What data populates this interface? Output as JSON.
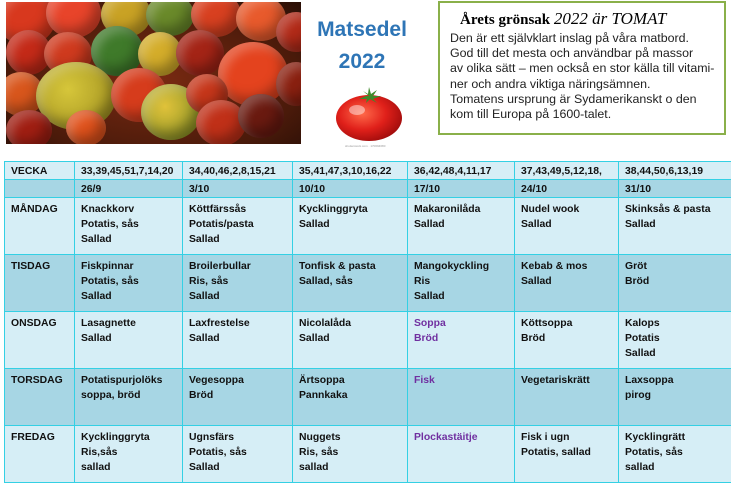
{
  "header": {
    "title_line1": "Matsedel",
    "title_line2": "2022",
    "image_caption": "shutterstock.com · 170694680"
  },
  "infobox": {
    "heading_prefix": "Årets grönsak",
    "heading_emph": "2022 är TOMAT",
    "body": "Den är ett självklart inslag på våra matbord.\nGod till det mesta och användbar på massor\nav olika sätt – men också en stor källa till vitami-\nner och andra viktiga näringsämnen.\nTomatens ursprung är Sydamerikanskt o den\nkom till Europa på 1600-talet."
  },
  "table": {
    "vecka_label": "VECKA",
    "weeks": [
      "33,39,45,51,7,14,20",
      "34,40,46,2,8,15,21",
      "35,41,47,3,10,16,22",
      "36,42,48,4,11,17",
      "37,43,49,5,12,18,",
      "38,44,50,6,13,19"
    ],
    "dates": [
      "26/9",
      "3/10",
      "10/10",
      "17/10",
      "24/10",
      "31/10"
    ],
    "days": [
      {
        "name": "MÅNDAG",
        "meals": [
          "Knackkorv\nPotatis, sås\nSallad",
          "Köttfärssås\nPotatis/pasta\nSallad",
          "Kycklinggryta\nSallad",
          "Makaronilåda\nSallad",
          "Nudel wook\nSallad",
          "Skinksås & pasta\nSallad"
        ]
      },
      {
        "name": "TISDAG",
        "meals": [
          "Fiskpinnar\nPotatis, sås\nSallad",
          "Broilerbullar\nRis, sås\nSallad",
          "Tonfisk & pasta\nSallad, sås",
          "Mangokyckling\nRis\nSallad",
          "Kebab & mos\nSallad",
          "Gröt\nBröd"
        ]
      },
      {
        "name": "ONSDAG",
        "meals": [
          "Lasagnette\nSallad",
          "Laxfrestelse\nSallad",
          "Nicolalåda\nSallad",
          "Soppa\nBröd",
          "Köttsoppa\nBröd",
          "Kalops\nPotatis\nSallad"
        ]
      },
      {
        "name": "TORSDAG",
        "meals": [
          "Potatispurjolöks\nsoppa, bröd",
          "Vegesoppa\nBröd",
          "Ärtsoppa\nPannkaka",
          "Fisk",
          "Vegetariskrätt",
          "Laxsoppa\npirog"
        ]
      },
      {
        "name": "FREDAG",
        "meals": [
          "Kycklinggryta\nRis,sås\nsallad",
          "Ugnsfärs\nPotatis, sås\nSallad",
          "Nuggets\nRis, sås\nsallad",
          "Plockastäitje",
          "Fisk i ugn\nPotatis, sallad",
          "Kycklingrätt\nPotatis, sås\nsallad"
        ]
      }
    ]
  },
  "colors": {
    "title_blue": "#2e75b6",
    "box_border": "#8ab04a",
    "grid_line": "#34d0e4",
    "row_light": "#d6eef6",
    "row_dark": "#a7d6e4",
    "highlight_purple": "#7030a0"
  }
}
